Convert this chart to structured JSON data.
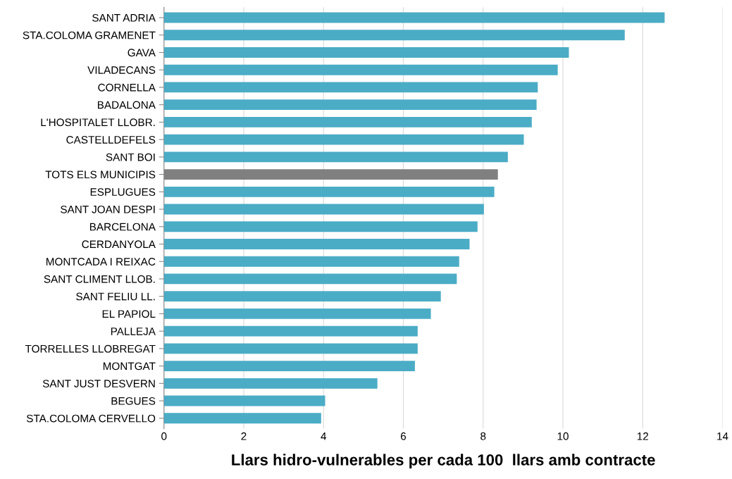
{
  "chart_data": {
    "type": "bar",
    "orientation": "horizontal",
    "xlabel": "Llars hidro-vulnerables per cada 100  llars amb contracte",
    "categories": [
      "SANT ADRIA",
      "STA.COLOMA GRAMENET",
      "GAVA",
      "VILADECANS",
      "CORNELLA",
      "BADALONA",
      "L'HOSPITALET LLOBR.",
      "CASTELLDEFELS",
      "SANT BOI",
      "TOTS ELS MUNICIPIS",
      "ESPLUGUES",
      "SANT JOAN DESPI",
      "BARCELONA",
      "CERDANYOLA",
      "MONTCADA I REIXAC",
      "SANT CLIMENT LLOB.",
      "SANT FELIU LL.",
      "EL PAPIOL",
      "PALLEJA",
      "TORRELLES LLOBREGAT",
      "MONTGAT",
      "SANT JUST DESVERN",
      "BEGUES",
      "STA.COLOMA CERVELLO"
    ],
    "values": [
      12.55,
      11.55,
      10.15,
      9.87,
      9.37,
      9.34,
      9.22,
      9.02,
      8.62,
      8.37,
      8.28,
      8.02,
      7.86,
      7.66,
      7.4,
      7.34,
      6.94,
      6.69,
      6.36,
      6.36,
      6.29,
      5.35,
      4.04,
      3.94
    ],
    "colors": [
      "#4bacc6",
      "#4bacc6",
      "#4bacc6",
      "#4bacc6",
      "#4bacc6",
      "#4bacc6",
      "#4bacc6",
      "#4bacc6",
      "#4bacc6",
      "#808080",
      "#4bacc6",
      "#4bacc6",
      "#4bacc6",
      "#4bacc6",
      "#4bacc6",
      "#4bacc6",
      "#4bacc6",
      "#4bacc6",
      "#4bacc6",
      "#4bacc6",
      "#4bacc6",
      "#4bacc6",
      "#4bacc6",
      "#4bacc6"
    ],
    "xlim": [
      0,
      14
    ],
    "xticks": [
      0,
      2,
      4,
      6,
      8,
      10,
      12,
      14
    ],
    "grid": "x",
    "legend": false
  }
}
